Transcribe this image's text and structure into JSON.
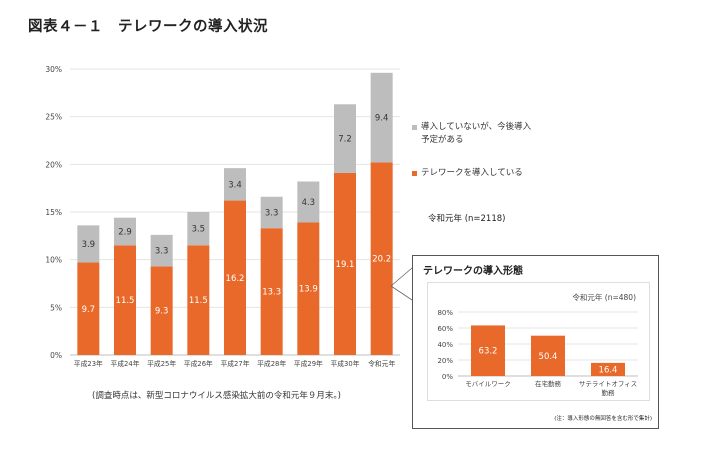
{
  "title": "図表４－１　テレワークの導入状況",
  "chart_data": [
    {
      "type": "bar",
      "stacked": true,
      "categories": [
        "平成23年",
        "平成24年",
        "平成25年",
        "平成26年",
        "平成27年",
        "平成28年",
        "平成29年",
        "平成30年",
        "令和元年"
      ],
      "series": [
        {
          "name": "テレワークを導入している",
          "values": [
            9.7,
            11.5,
            9.3,
            11.5,
            16.2,
            13.3,
            13.9,
            19.1,
            20.2
          ],
          "color": "#e8692a"
        },
        {
          "name": "導入していないが、今後導入予定がある",
          "values": [
            3.9,
            2.9,
            3.3,
            3.5,
            3.4,
            3.3,
            4.3,
            7.2,
            9.4
          ],
          "color": "#bdbdbd"
        }
      ],
      "ylim": [
        0,
        30
      ],
      "yticks": [
        "0%",
        "5%",
        "10%",
        "15%",
        "20%",
        "25%",
        "30%"
      ],
      "grid": true,
      "legend": "right"
    },
    {
      "type": "bar",
      "title": "テレワークの導入形態",
      "subtitle": "令和元年 (n=480)",
      "categories": [
        "モバイルワーク",
        "在宅勤務",
        "サテライトオフィス勤務"
      ],
      "values": [
        63.2,
        50.4,
        16.4
      ],
      "color": "#e8692a",
      "ylim": [
        0,
        80
      ],
      "yticks": [
        "0%",
        "20%",
        "40%",
        "60%",
        "80%"
      ],
      "grid": true
    }
  ],
  "legend": {
    "planned": "導入していないが、今後導入予定がある",
    "adopted": "テレワークを導入している"
  },
  "year_note": "令和元年 (n=2118)",
  "survey_note": "(調査時点は、新型コロナウイルス感染拡大前の令和元年９月末。)",
  "inset": {
    "title": "テレワークの導入形態",
    "subtitle": "令和元年 (n=480)",
    "footnote": "(注：導入形態の無回答を含む形で集計)"
  }
}
